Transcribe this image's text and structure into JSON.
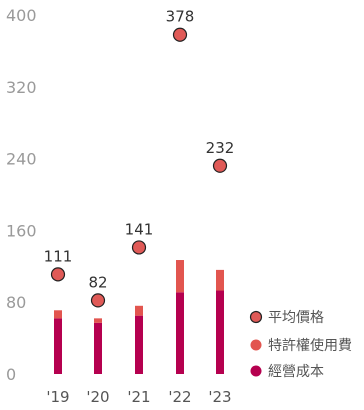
{
  "chart_data": {
    "type": "bar",
    "categories": [
      "'19",
      "'20",
      "'21",
      "'22",
      "'23"
    ],
    "ylim": [
      0,
      400
    ],
    "yticks": [
      0,
      80,
      160,
      240,
      320,
      400
    ],
    "grid": false,
    "legend_position": "bottom-right",
    "series": [
      {
        "name": "經營成本",
        "kind": "bar",
        "stacked": true,
        "color": "#b5004f",
        "values": [
          62,
          57,
          65,
          91,
          93
        ]
      },
      {
        "name": "特許權使用費",
        "kind": "bar",
        "stacked": true,
        "color": "#e2554f",
        "values": [
          9,
          5,
          11,
          36,
          23
        ]
      },
      {
        "name": "平均價格",
        "kind": "point",
        "color": "#e05a57",
        "values": [
          111,
          82,
          141,
          378,
          232
        ],
        "labels": [
          "111",
          "82",
          "141",
          "378",
          "232"
        ]
      }
    ]
  }
}
